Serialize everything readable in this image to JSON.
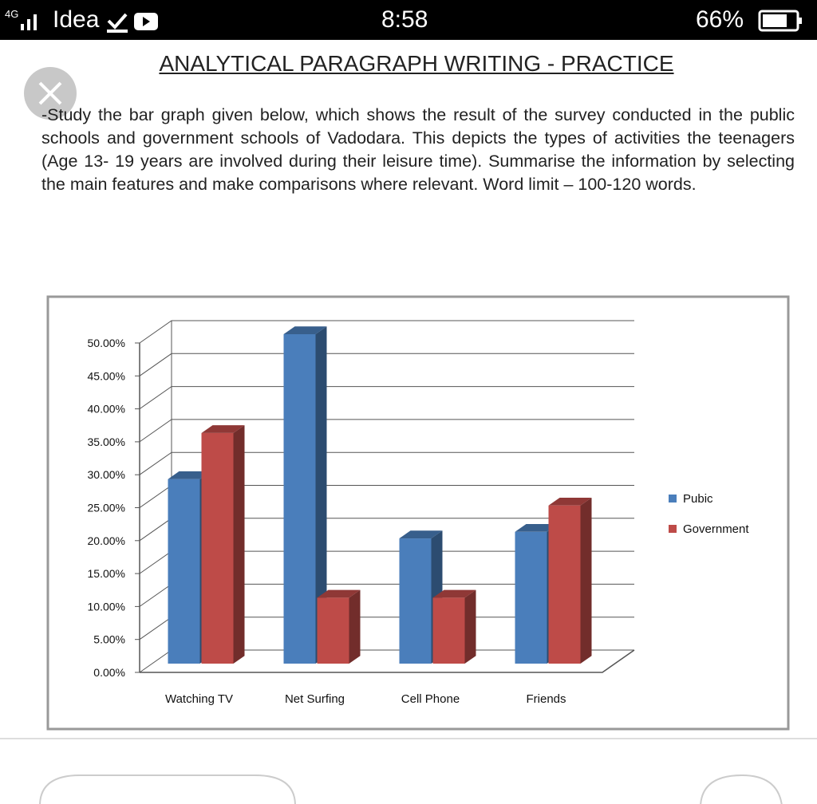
{
  "status_bar": {
    "network": "4G",
    "carrier": "Idea",
    "time": "8:58",
    "battery": "66%"
  },
  "document": {
    "title": "ANALYTICAL PARAGRAPH WRITING - PRACTICE",
    "paragraph": "-Study the bar graph given below, which shows the result of the survey conducted in the public schools and government schools of Vadodara. This depicts the types of activities the teenagers (Age 13- 19 years are involved during their leisure time). Summarise the information by selecting the main features and make comparisons where relevant. Word limit – 100-120 words."
  },
  "chart_data": {
    "type": "bar",
    "categories": [
      "Watching TV",
      "Net Surfing",
      "Cell Phone",
      "Friends"
    ],
    "series": [
      {
        "name": "Pubic",
        "color": "#4a7ebb",
        "values": [
          28,
          50,
          19,
          20
        ]
      },
      {
        "name": "Government",
        "color": "#be4b48",
        "values": [
          35,
          10,
          10,
          24
        ]
      }
    ],
    "ylim": [
      0,
      50
    ],
    "yticks": [
      {
        "value": 0,
        "label": "0.00%"
      },
      {
        "value": 5,
        "label": "5.00%"
      },
      {
        "value": 10,
        "label": "10.00%"
      },
      {
        "value": 15,
        "label": "15.00%"
      },
      {
        "value": 20,
        "label": "20.00%"
      },
      {
        "value": 25,
        "label": "25.00%"
      },
      {
        "value": 30,
        "label": "30.00%"
      },
      {
        "value": 35,
        "label": "35.00%"
      },
      {
        "value": 40,
        "label": "40.00%"
      },
      {
        "value": 45,
        "label": "45.00%"
      },
      {
        "value": 50,
        "label": "50.00%"
      }
    ],
    "grid": true,
    "legend": "right"
  }
}
